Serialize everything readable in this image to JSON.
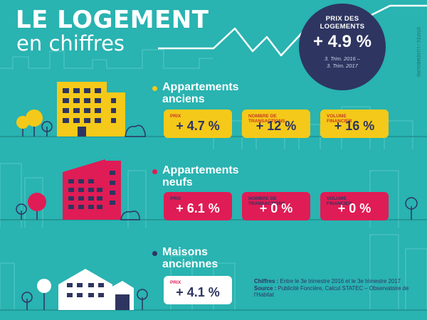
{
  "header": {
    "title": "LE LOGEMENT",
    "subtitle": "en chiffres"
  },
  "badge": {
    "label_line1": "PRIX DES",
    "label_line2": "LOGEMENTS",
    "value": "+ 4.9 %",
    "period_line1": "3. Trim. 2016 –",
    "period_line2": "3. Trim. 2017"
  },
  "credit": "STATEC / LUXEMBOURG",
  "sections": [
    {
      "title_line1": "Appartements",
      "title_line2": "anciens",
      "dot_color": "#f5c919",
      "cards": [
        {
          "label_line1": "PRIX",
          "label_line2": "",
          "value": "+ 4.7 %"
        },
        {
          "label_line1": "NOMBRE DE",
          "label_line2": "TRANSACTIONS",
          "value": "+ 12 %"
        },
        {
          "label_line1": "VOLUME",
          "label_line2": "FINANCIER",
          "value": "+ 16 %"
        }
      ]
    },
    {
      "title_line1": "Appartements",
      "title_line2": "neufs",
      "dot_color": "#df1c55",
      "cards": [
        {
          "label_line1": "PRIX",
          "label_line2": "",
          "value": "+ 6.1 %"
        },
        {
          "label_line1": "NOMBRE DE",
          "label_line2": "TRANSACTIONS",
          "value": "+ 0 %"
        },
        {
          "label_line1": "VOLUME",
          "label_line2": "FINANCIER",
          "value": "+ 0 %"
        }
      ]
    },
    {
      "title_line1": "Maisons",
      "title_line2": "anciennes",
      "dot_color": "#2e3560",
      "cards": [
        {
          "label_line1": "PRIX",
          "label_line2": "",
          "value": "+ 4.1 %"
        }
      ]
    }
  ],
  "notes": {
    "chiffres_label": "Chiffres :",
    "chiffres_text": "Entre le 3e trimestre 2016 et le 3e trimestre 2017",
    "source_label": "Source :",
    "source_text": "Publicité Foncière, Calcul STATEC – Observatoire de l'Habitat"
  },
  "colors": {
    "background": "#29b3b1",
    "navy": "#2e3560",
    "yellow": "#f5c919",
    "pink": "#df1c55",
    "white": "#ffffff"
  },
  "icons": [
    "building-yellow-icon",
    "building-red-icon",
    "house-white-icon",
    "tree-icon",
    "bush-icon",
    "skyline-icon",
    "trend-line-icon"
  ]
}
